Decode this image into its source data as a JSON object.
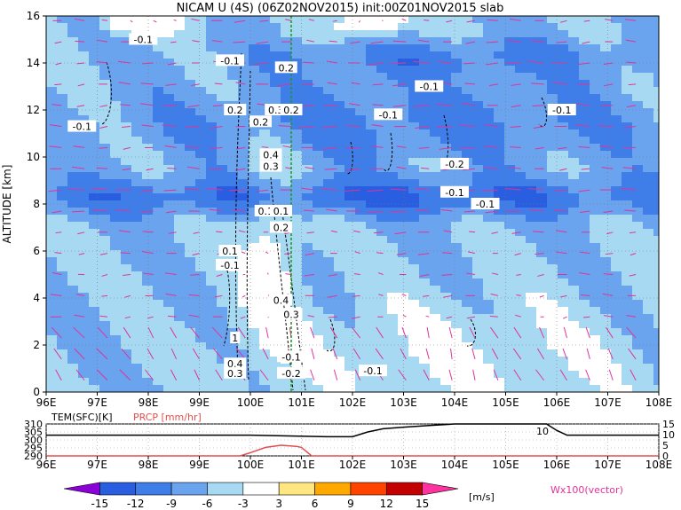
{
  "title": "NICAM U (4S) (06Z02NOV2015) init:00Z01NOV2015 slab",
  "chart_data": [
    {
      "type": "heatmap",
      "title": "NICAM U (4S) (06Z02NOV2015) init:00Z01NOV2015 slab",
      "xlabel": "",
      "ylabel": "ALTITUDE [km]",
      "x_ticks": [
        "96E",
        "97E",
        "98E",
        "99E",
        "100E",
        "101E",
        "102E",
        "103E",
        "104E",
        "105E",
        "106E",
        "107E",
        "108E"
      ],
      "xlim": [
        96,
        108
      ],
      "y_ticks": [
        0,
        2,
        4,
        6,
        8,
        10,
        12,
        14,
        16
      ],
      "ylim": [
        0,
        16
      ],
      "grid": true,
      "vertical_marker_x": 100.8,
      "contour_labels": [
        {
          "text": "-0.1",
          "x": 97.9,
          "y": 15.0
        },
        {
          "text": "-0.1",
          "x": 96.7,
          "y": 11.3
        },
        {
          "text": "-0.1",
          "x": 99.6,
          "y": 14.1
        },
        {
          "text": "0.2",
          "x": 100.7,
          "y": 13.8
        },
        {
          "text": "0.2",
          "x": 99.7,
          "y": 12.0
        },
        {
          "text": "0.3",
          "x": 100.5,
          "y": 12.0
        },
        {
          "text": "0.2",
          "x": 100.8,
          "y": 12.0
        },
        {
          "text": "0.2",
          "x": 100.2,
          "y": 11.5
        },
        {
          "text": "0.4",
          "x": 100.4,
          "y": 10.1
        },
        {
          "text": "0.3",
          "x": 100.4,
          "y": 9.6
        },
        {
          "text": "-0.1",
          "x": 103.5,
          "y": 13.0
        },
        {
          "text": "-0.1",
          "x": 102.7,
          "y": 11.8
        },
        {
          "text": "-0.1",
          "x": 106.1,
          "y": 12.0
        },
        {
          "text": "-0.2",
          "x": 104.0,
          "y": 9.7
        },
        {
          "text": "-0.1",
          "x": 104.0,
          "y": 8.5
        },
        {
          "text": "-0.1",
          "x": 104.6,
          "y": 8.0
        },
        {
          "text": "0.1",
          "x": 100.3,
          "y": 7.7
        },
        {
          "text": "0.1",
          "x": 100.6,
          "y": 7.7
        },
        {
          "text": "0.2",
          "x": 100.6,
          "y": 7.0
        },
        {
          "text": "0.1",
          "x": 99.6,
          "y": 6.0
        },
        {
          "text": "-0.1",
          "x": 99.6,
          "y": 5.4
        },
        {
          "text": "0.4",
          "x": 100.6,
          "y": 3.9
        },
        {
          "text": "0.3",
          "x": 100.8,
          "y": 3.3
        },
        {
          "text": "1",
          "x": 99.7,
          "y": 2.3
        },
        {
          "text": "-0.1",
          "x": 100.8,
          "y": 1.5
        },
        {
          "text": "0.4",
          "x": 99.7,
          "y": 1.2
        },
        {
          "text": "0.3",
          "x": 99.7,
          "y": 0.8
        },
        {
          "text": "-0.2",
          "x": 100.8,
          "y": 0.8
        },
        {
          "text": "-0.1",
          "x": 102.4,
          "y": 0.9
        }
      ]
    },
    {
      "type": "line",
      "label_left": "TEM(SFC)[K]",
      "label_center": "PRCP [mm/hr]",
      "x_ticks": [
        "96E",
        "97E",
        "98E",
        "99E",
        "100E",
        "101E",
        "102E",
        "103E",
        "104E",
        "105E",
        "106E",
        "107E",
        "108E"
      ],
      "xlim": [
        96,
        108
      ],
      "y_left_ticks": [
        290,
        295,
        300,
        305,
        310
      ],
      "y_left_lim": [
        290,
        310
      ],
      "y_right_ticks": [
        0,
        5,
        10,
        15
      ],
      "y_right_lim": [
        0,
        15
      ],
      "series": [
        {
          "x": [
            96,
            98,
            100,
            101.5,
            102,
            102.3,
            102.6,
            103,
            103.5,
            104,
            105,
            105.8,
            106,
            106.2,
            106.5,
            108
          ],
          "values": [
            303,
            303,
            303,
            302,
            302,
            305,
            307,
            308,
            309,
            310,
            310,
            310,
            306,
            303,
            303,
            303
          ]
        },
        {
          "x": [
            96,
            99.8,
            100.0,
            100.3,
            100.6,
            100.9,
            101.0,
            101.2,
            108
          ],
          "values": [
            0,
            0,
            1.5,
            4.0,
            5.0,
            4.5,
            4.0,
            0,
            0
          ]
        }
      ],
      "annotation": "10"
    }
  ],
  "colorbar": {
    "ticks": [
      "-15",
      "-12",
      "-9",
      "-6",
      "-3",
      "3",
      "6",
      "9",
      "12",
      "15"
    ],
    "unit": "[m/s]",
    "vector_label": "Wx100(vector)",
    "colors": [
      "#8b00d6",
      "#2a5ee0",
      "#3f7ee8",
      "#6aa3ee",
      "#a7daf2",
      "#ffffff",
      "#ffe680",
      "#ffa800",
      "#ff4400",
      "#c20000",
      "#ff32a0"
    ]
  }
}
